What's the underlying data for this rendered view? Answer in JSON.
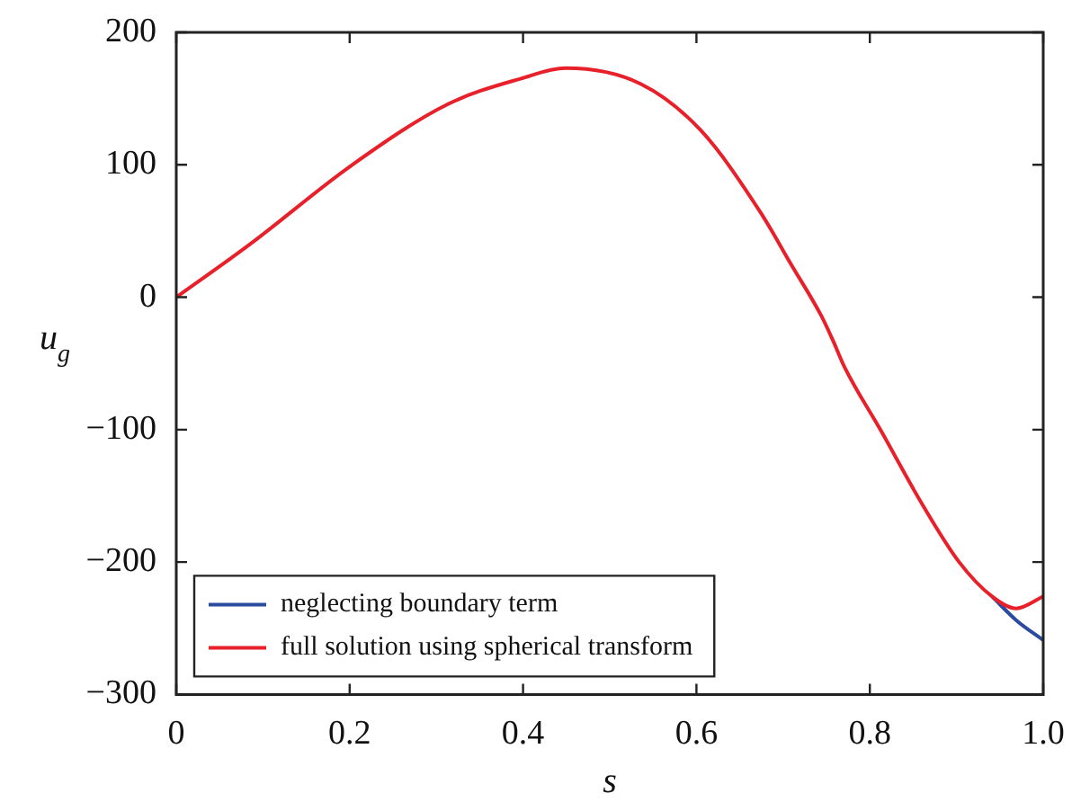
{
  "chart_data": {
    "type": "line",
    "xlabel": "s",
    "ylabel": "u$_{g}$",
    "x": [
      0,
      0.085,
      0.203,
      0.314,
      0.397,
      0.449,
      0.536,
      0.605,
      0.674,
      0.709,
      0.744,
      0.757,
      0.771,
      0.813,
      0.861,
      0.903,
      0.941,
      0.969,
      1.0
    ],
    "series": [
      {
        "name": "neglecting boundary term",
        "color": "#2b4ba0",
        "values": [
          null,
          null,
          null,
          null,
          null,
          null,
          null,
          null,
          null,
          null,
          null,
          null,
          null,
          null,
          null,
          null,
          -226,
          -244,
          -259
        ]
      },
      {
        "name": "full solution using spherical transform",
        "color": "#e8202a",
        "values": [
          0,
          40,
          100,
          146,
          165,
          173,
          161,
          126,
          64,
          25,
          -14,
          -32,
          -53,
          -101,
          -157,
          -200,
          -226,
          -235,
          -226
        ]
      }
    ],
    "xlim": [
      0,
      1
    ],
    "xticks": [
      0,
      0.2,
      0.4,
      0.6,
      0.8,
      {
        "value": 1,
        "label": "1.0"
      }
    ],
    "ylim": [
      -300,
      200
    ],
    "yticks": [
      -300,
      -200,
      -100,
      0,
      100,
      200
    ],
    "legend": "bottom left",
    "grid": false
  }
}
